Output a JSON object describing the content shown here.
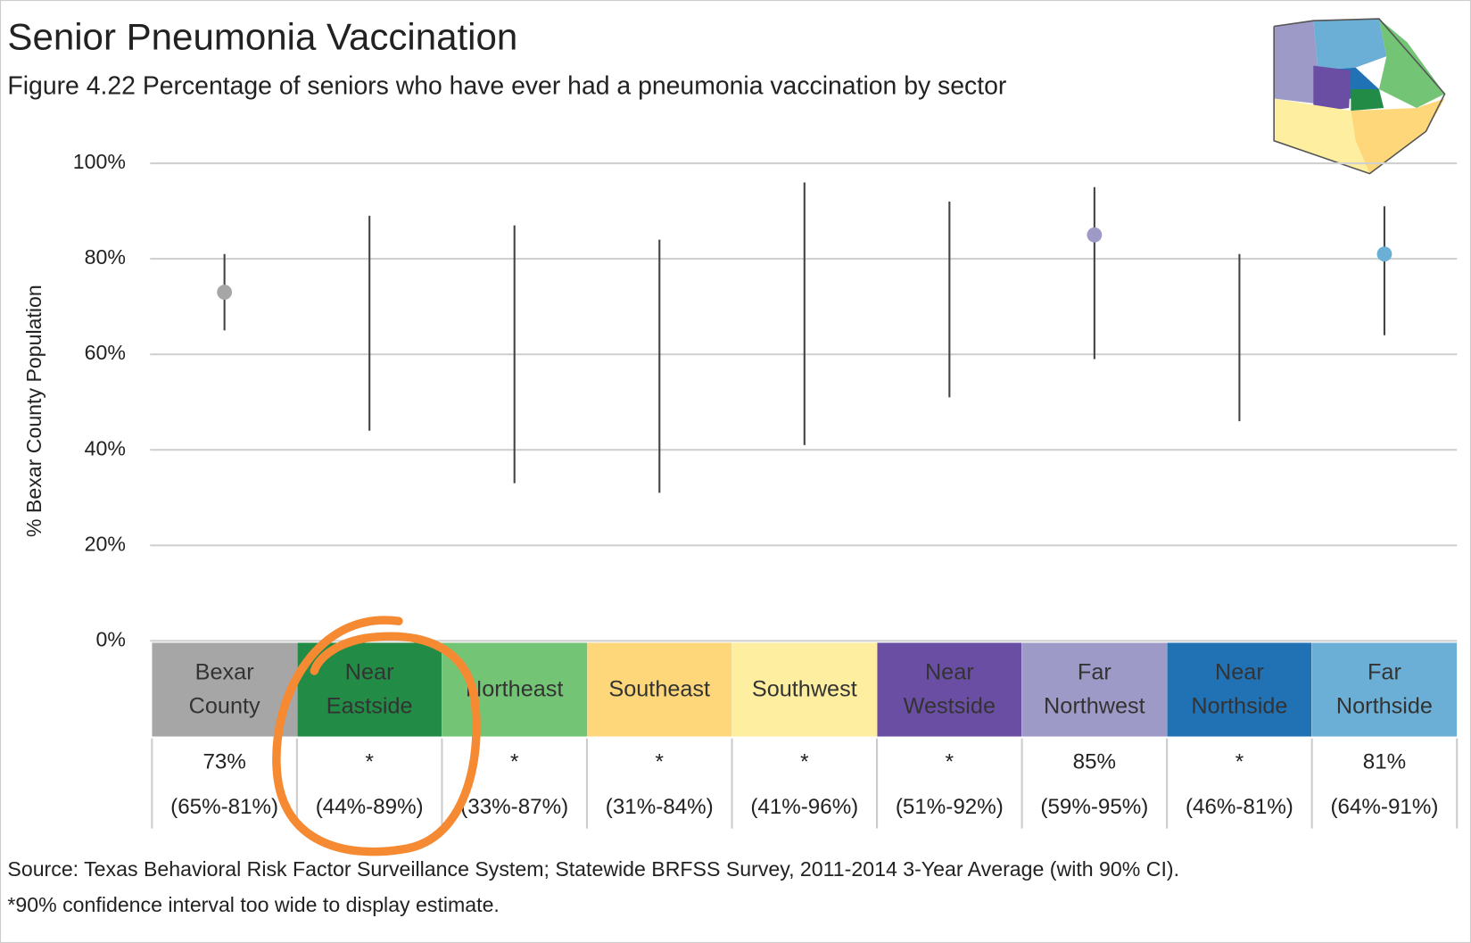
{
  "chart_data": {
    "type": "errorbar",
    "title": "Senior Pneumonia Vaccination",
    "subtitle": "Figure 4.22 Percentage of seniors who have ever had a pneumonia vaccination by sector",
    "y_label": "% Bexar County Population",
    "categories": [
      "Bexar County",
      "Near Eastside",
      "Northeast",
      "Southeast",
      "Southwest",
      "Near Westside",
      "Far Northwest",
      "Near Northside",
      "Far Northside"
    ],
    "category_colors": [
      "#a6a6a6",
      "#228b45",
      "#74c476",
      "#fdd77a",
      "#fdeea0",
      "#6a4ea3",
      "#9e9ac8",
      "#2171b5",
      "#6baed6"
    ],
    "values": [
      73,
      null,
      null,
      null,
      null,
      null,
      85,
      null,
      81
    ],
    "value_labels": [
      "73%",
      "*",
      "*",
      "*",
      "*",
      "*",
      "85%",
      "*",
      "81%"
    ],
    "point_colors": [
      "#a6a6a6",
      null,
      null,
      null,
      null,
      null,
      "#9e9ac8",
      null,
      "#6baed6"
    ],
    "ci_low": [
      65,
      44,
      33,
      31,
      41,
      51,
      59,
      46,
      64
    ],
    "ci_high": [
      81,
      89,
      87,
      84,
      96,
      92,
      95,
      81,
      91
    ],
    "ci_labels": [
      "(65%-81%)",
      "(44%-89%)",
      "(33%-87%)",
      "(31%-84%)",
      "(41%-96%)",
      "(51%-92%)",
      "(59%-95%)",
      "(46%-81%)",
      "(64%-91%)"
    ],
    "ylim": [
      0,
      100
    ],
    "yticks": [
      {
        "value": 0,
        "label": "0%"
      },
      {
        "value": 20,
        "label": "20%"
      },
      {
        "value": 40,
        "label": "40%"
      },
      {
        "value": 60,
        "label": "60%"
      },
      {
        "value": 80,
        "label": "80%"
      },
      {
        "value": 100,
        "label": "100%"
      }
    ],
    "grid": true,
    "notes": [
      "Source: Texas Behavioral Risk Factor Surveillance System; Statewide BRFSS Survey, 2011-2014 3-Year Average (with 90% CI).",
      "*90% confidence interval too wide to display estimate."
    ]
  }
}
